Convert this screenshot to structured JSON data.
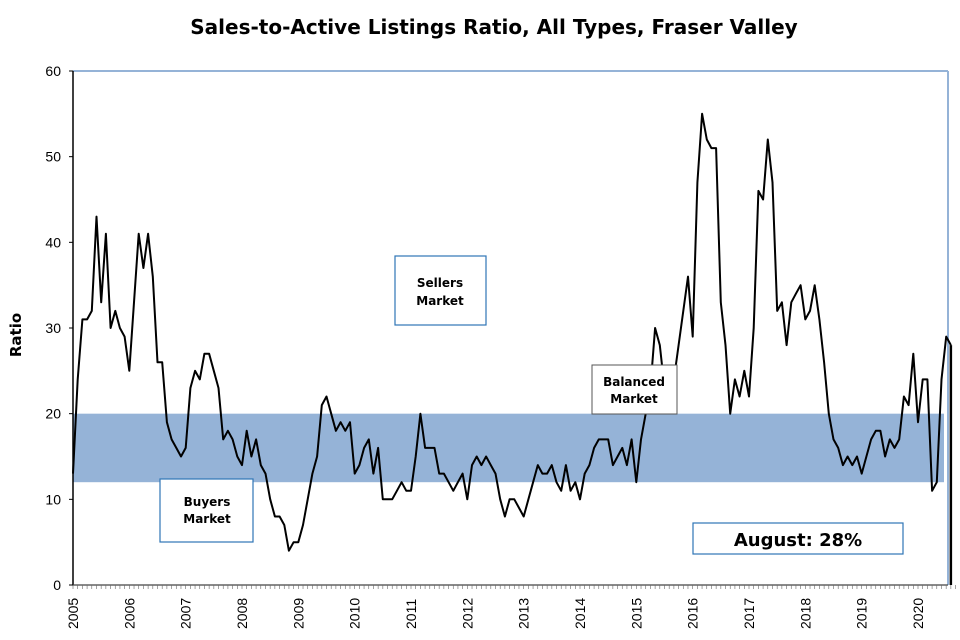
{
  "chart_data": {
    "type": "line",
    "title": "Sales-to-Active Listings Ratio, All Types, Fraser Valley",
    "xlabel": "",
    "ylabel": "Ratio",
    "ylim": [
      0,
      60
    ],
    "yticks": [
      "0",
      "10",
      "20",
      "30",
      "40",
      "50",
      "60"
    ],
    "xticks": [
      "2005",
      "2006",
      "2007",
      "2008",
      "2009",
      "2010",
      "2011",
      "2012",
      "2013",
      "2014",
      "2015",
      "2016",
      "2017",
      "2018",
      "2019",
      "2020"
    ],
    "x_start": "2005-01",
    "frequency": "monthly",
    "balanced_band": [
      12,
      20
    ],
    "annotations": {
      "sellers": [
        "Sellers",
        "Market"
      ],
      "balanced": [
        "Balanced",
        "Market"
      ],
      "buyers": [
        "Buyers",
        "Market"
      ],
      "latest": "August: 28%"
    },
    "colors": {
      "band": "#95b3d7",
      "line": "#000000",
      "box_border": "#2e75b6",
      "frame": "#95b3d7"
    },
    "series": [
      {
        "name": "Sales-to-Active Listings Ratio",
        "values": [
          13,
          24,
          31,
          31,
          32,
          43,
          33,
          41,
          30,
          32,
          30,
          29,
          25,
          33,
          41,
          37,
          41,
          36,
          26,
          26,
          19,
          17,
          16,
          15,
          16,
          23,
          25,
          24,
          27,
          27,
          25,
          23,
          17,
          18,
          17,
          15,
          14,
          18,
          15,
          17,
          14,
          13,
          10,
          8,
          8,
          7,
          4,
          5,
          5,
          7,
          10,
          13,
          15,
          21,
          22,
          20,
          18,
          19,
          18,
          19,
          13,
          14,
          16,
          17,
          13,
          16,
          10,
          10,
          10,
          11,
          12,
          11,
          11,
          15,
          20,
          16,
          16,
          16,
          13,
          13,
          12,
          11,
          12,
          13,
          10,
          14,
          15,
          14,
          15,
          14,
          13,
          10,
          8,
          10,
          10,
          9,
          8,
          10,
          12,
          14,
          13,
          13,
          14,
          12,
          11,
          14,
          11,
          12,
          10,
          13,
          14,
          16,
          17,
          17,
          17,
          14,
          15,
          16,
          14,
          17,
          12,
          17,
          20,
          23,
          30,
          28,
          23,
          21,
          24,
          28,
          32,
          36,
          29,
          47,
          55,
          52,
          51,
          51,
          33,
          28,
          20,
          24,
          22,
          25,
          22,
          30,
          46,
          45,
          52,
          47,
          32,
          33,
          28,
          33,
          34,
          35,
          31,
          32,
          35,
          31,
          26,
          20,
          17,
          16,
          14,
          15,
          14,
          15,
          13,
          15,
          17,
          18,
          18,
          15,
          17,
          16,
          17,
          22,
          21,
          27,
          19,
          24,
          24,
          11,
          12,
          24,
          29,
          28
        ]
      }
    ]
  }
}
